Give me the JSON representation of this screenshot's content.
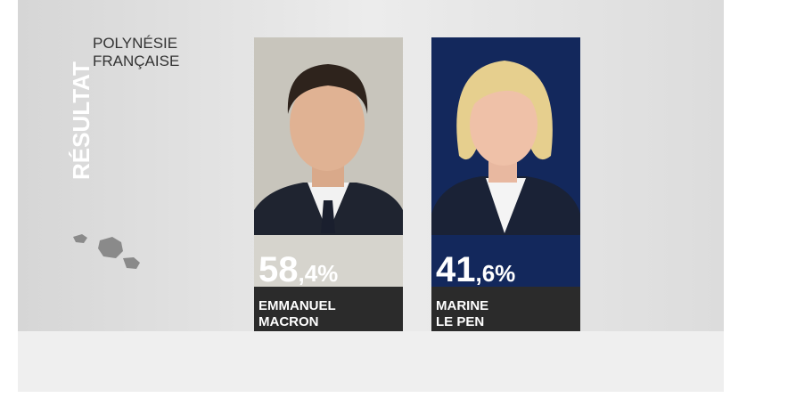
{
  "header": {
    "title": "RÉSULTAT",
    "region_lines": [
      "POLYNÉSIE",
      "FRANÇAISE"
    ]
  },
  "candidates": [
    {
      "score": "58,4%",
      "name_lines": [
        "EMMANUEL",
        "MACRON"
      ]
    },
    {
      "score": "41,6%",
      "name_lines": [
        "MARINE",
        "LE PEN"
      ]
    }
  ]
}
